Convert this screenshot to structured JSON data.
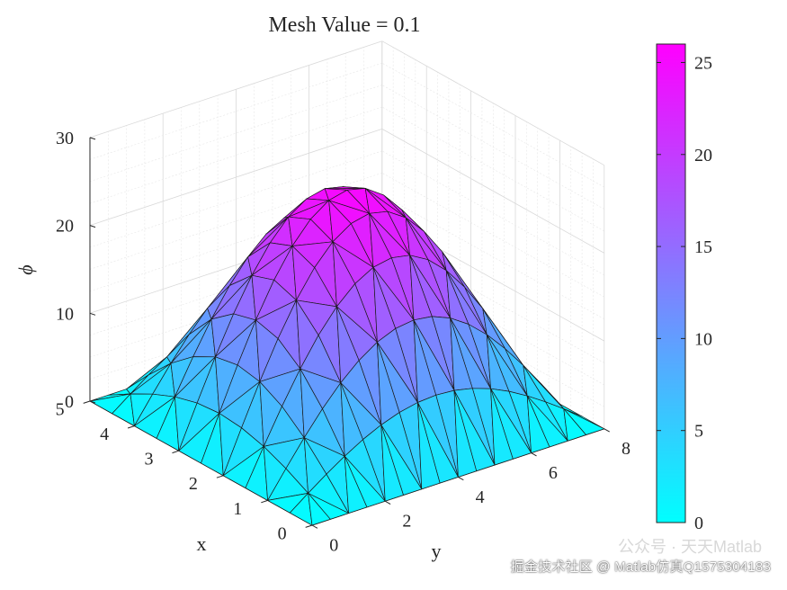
{
  "chart_data": {
    "type": "surface",
    "title": "Mesh Value = 0.1",
    "xlabel": "x",
    "ylabel": "y",
    "zlabel": "ϕ",
    "x_range": [
      0,
      5
    ],
    "y_range": [
      0,
      8
    ],
    "z_range": [
      0,
      30
    ],
    "x_ticks": [
      "0",
      "1",
      "2",
      "3",
      "4",
      "5"
    ],
    "y_ticks": [
      "0",
      "2",
      "4",
      "6",
      "8"
    ],
    "z_ticks": [
      "0",
      "10",
      "20",
      "30"
    ],
    "surface": {
      "function": "phi(x,y) = 25.6 * sin(pi*x/5) * sin(pi*y/8)",
      "peak_value": 25.6,
      "peak_at": [
        2.5,
        4
      ],
      "boundary_value": 0,
      "mesh": "triangular",
      "mesh_divisions_x": 10,
      "mesh_divisions_y": 16
    },
    "colormap": "cool",
    "colormap_from": "#00ffff",
    "colormap_to": "#ff00ff",
    "colorbar": {
      "range": [
        0,
        26
      ],
      "ticks": [
        "0",
        "5",
        "10",
        "15",
        "20",
        "25"
      ],
      "position": "right"
    },
    "grid": true,
    "view": "3d-isometric"
  },
  "watermark": {
    "main": "掘金技术社区 @ Matlab仿真Q1575304183",
    "faint": "公众号 · 天天Matlab"
  }
}
